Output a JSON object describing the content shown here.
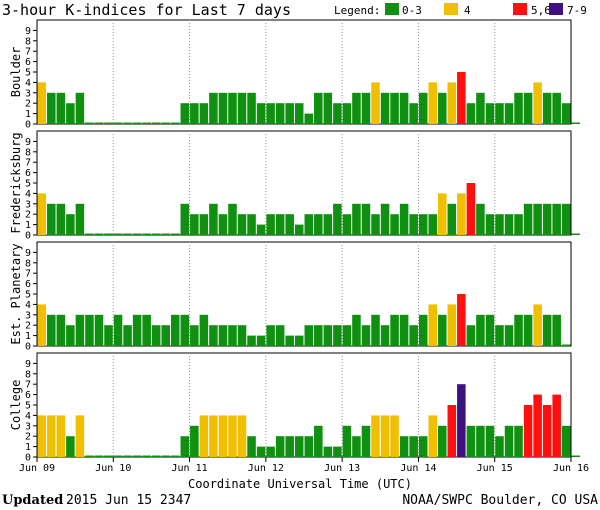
{
  "title": "3-hour K-indices for Last 7 days",
  "legend": {
    "label": "Legend:",
    "items": [
      {
        "label": "0-3",
        "color": "#109010"
      },
      {
        "label": "4",
        "color": "#f0c000"
      },
      {
        "label": "5,6",
        "color": "#ff1010"
      },
      {
        "label": "7-9",
        "color": "#401080"
      }
    ]
  },
  "footer": {
    "updated_label": "Updated",
    "updated_value": "2015 Jun 15 2347",
    "credit": "NOAA/SWPC Boulder, CO USA"
  },
  "chart_data": [
    {
      "type": "bar",
      "station": "Boulder",
      "xlabel": "Coordinate Universal Time (UTC)",
      "x_ticks": [
        "Jun 09",
        "Jun 10",
        "Jun 11",
        "Jun 12",
        "Jun 13",
        "Jun 14",
        "Jun 15",
        "Jun 16"
      ],
      "ylim": [
        0,
        9
      ],
      "y_ticks": [
        0,
        1,
        2,
        3,
        4,
        5,
        6,
        7,
        8,
        9
      ],
      "interval_hours": 3,
      "values": [
        4,
        3,
        3,
        2,
        3,
        0,
        0,
        0,
        0,
        0,
        0,
        0,
        0,
        0,
        0,
        2,
        2,
        2,
        3,
        3,
        3,
        3,
        3,
        2,
        2,
        2,
        2,
        2,
        1,
        3,
        3,
        2,
        2,
        3,
        3,
        4,
        3,
        3,
        3,
        2,
        3,
        4,
        3,
        4,
        5,
        2,
        3,
        2,
        2,
        2,
        3,
        3,
        4,
        3,
        3,
        2,
        0
      ]
    },
    {
      "type": "bar",
      "station": "Fredericksburg",
      "xlabel": "Coordinate Universal Time (UTC)",
      "x_ticks": [
        "Jun 09",
        "Jun 10",
        "Jun 11",
        "Jun 12",
        "Jun 13",
        "Jun 14",
        "Jun 15",
        "Jun 16"
      ],
      "ylim": [
        0,
        9
      ],
      "y_ticks": [
        0,
        1,
        2,
        3,
        4,
        5,
        6,
        7,
        8,
        9
      ],
      "interval_hours": 3,
      "values": [
        4,
        3,
        3,
        2,
        3,
        0,
        0,
        0,
        0,
        0,
        0,
        0,
        0,
        0,
        0,
        3,
        2,
        2,
        3,
        2,
        3,
        2,
        2,
        1,
        2,
        2,
        2,
        1,
        2,
        2,
        2,
        3,
        2,
        3,
        3,
        2,
        3,
        2,
        3,
        2,
        2,
        2,
        4,
        3,
        4,
        5,
        3,
        2,
        2,
        2,
        2,
        3,
        3,
        3,
        3,
        3,
        0
      ]
    },
    {
      "type": "bar",
      "station": "Est. Planetary",
      "xlabel": "Coordinate Universal Time (UTC)",
      "x_ticks": [
        "Jun 09",
        "Jun 10",
        "Jun 11",
        "Jun 12",
        "Jun 13",
        "Jun 14",
        "Jun 15",
        "Jun 16"
      ],
      "ylim": [
        0,
        9
      ],
      "y_ticks": [
        0,
        1,
        2,
        3,
        4,
        5,
        6,
        7,
        8,
        9
      ],
      "interval_hours": 3,
      "values": [
        4,
        3,
        3,
        2,
        3,
        3,
        3,
        2,
        3,
        2,
        3,
        3,
        2,
        2,
        3,
        3,
        2,
        3,
        2,
        2,
        2,
        2,
        1,
        1,
        2,
        2,
        1,
        1,
        2,
        2,
        2,
        2,
        2,
        3,
        2,
        3,
        2,
        3,
        3,
        2,
        3,
        4,
        3,
        4,
        5,
        2,
        3,
        3,
        2,
        2,
        3,
        3,
        4,
        3,
        3,
        0
      ]
    },
    {
      "type": "bar",
      "station": "College",
      "xlabel": "Coordinate Universal Time (UTC)",
      "x_ticks": [
        "Jun 09",
        "Jun 10",
        "Jun 11",
        "Jun 12",
        "Jun 13",
        "Jun 14",
        "Jun 15",
        "Jun 16"
      ],
      "ylim": [
        0,
        9
      ],
      "y_ticks": [
        0,
        1,
        2,
        3,
        4,
        5,
        6,
        7,
        8,
        9
      ],
      "interval_hours": 3,
      "values": [
        4,
        4,
        4,
        2,
        4,
        0,
        0,
        0,
        0,
        0,
        0,
        0,
        0,
        0,
        0,
        2,
        3,
        4,
        4,
        4,
        4,
        4,
        2,
        1,
        1,
        2,
        2,
        2,
        2,
        3,
        1,
        1,
        3,
        2,
        3,
        4,
        4,
        4,
        2,
        2,
        2,
        4,
        3,
        5,
        7,
        3,
        3,
        3,
        2,
        3,
        3,
        5,
        6,
        5,
        6,
        3,
        0
      ]
    }
  ]
}
